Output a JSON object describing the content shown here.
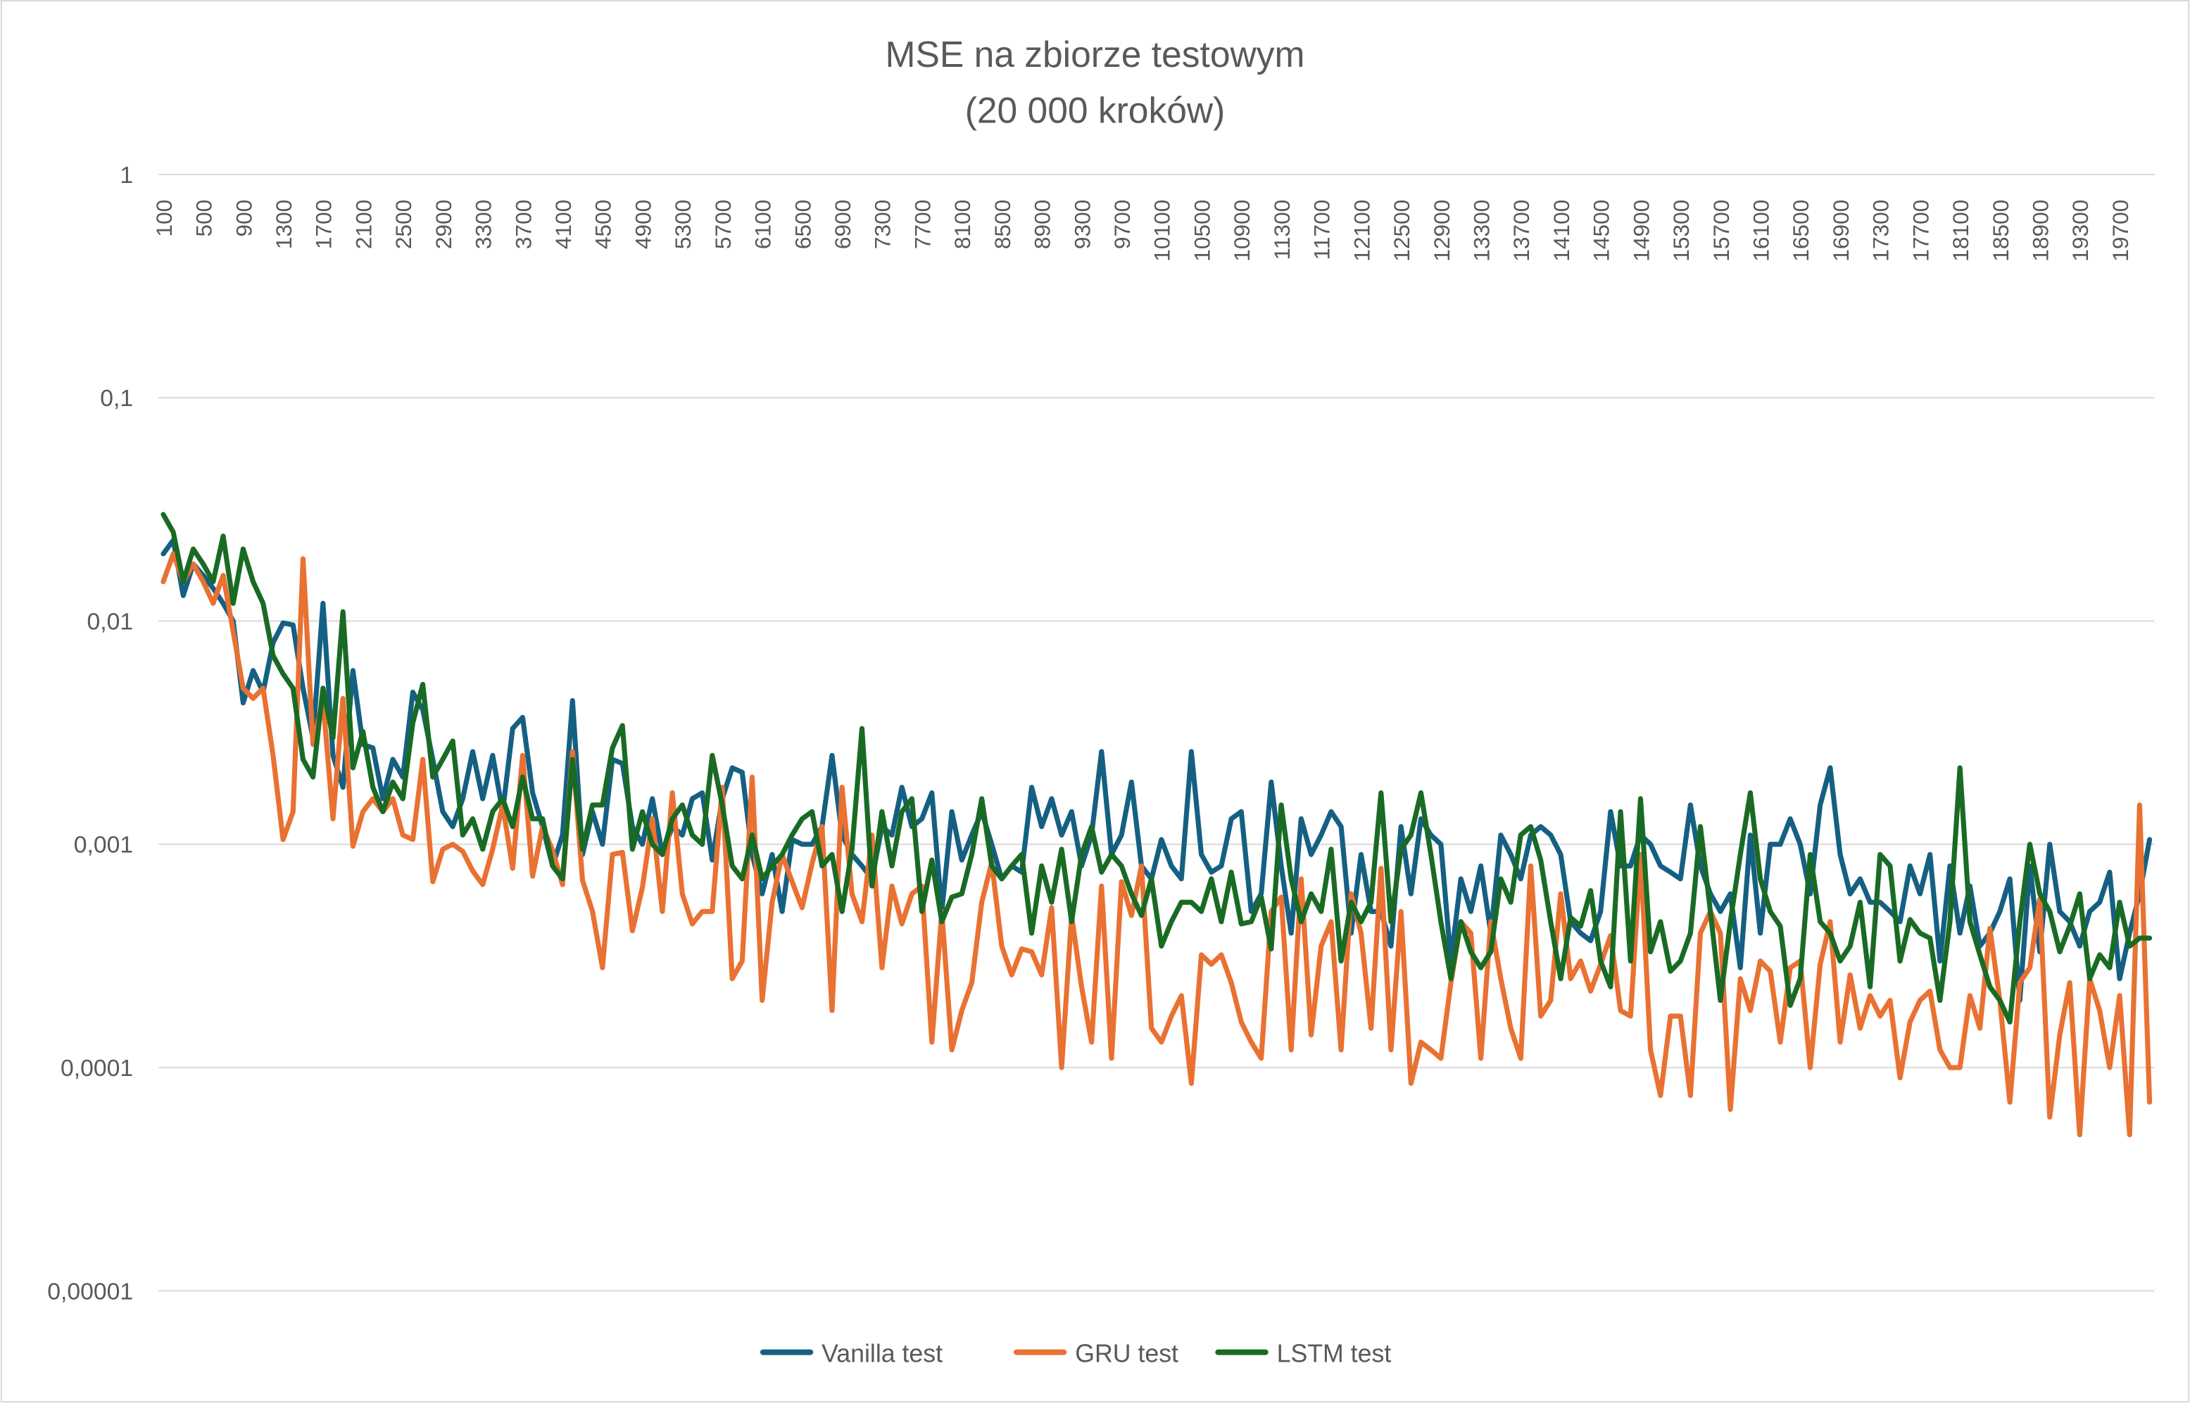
{
  "chart_data": {
    "type": "line",
    "title": "MSE na zbiorze testowym",
    "subtitle": "(20 000 kroków)",
    "log_y": true,
    "grid": true,
    "legend": "bottom",
    "ylim": [
      1e-05,
      1
    ],
    "yticks": [
      {
        "value": 1e-05,
        "label": "0,00001"
      },
      {
        "value": 0.0001,
        "label": "0,0001"
      },
      {
        "value": 0.001,
        "label": "0,001"
      },
      {
        "value": 0.01,
        "label": "0,01"
      },
      {
        "value": 0.1,
        "label": "0,1"
      },
      1
    ],
    "categories": [
      "100",
      null,
      null,
      null,
      "500",
      null,
      null,
      null,
      "900",
      null,
      null,
      null,
      "1300",
      null,
      null,
      null,
      "1700",
      null,
      null,
      null,
      "2100",
      null,
      null,
      null,
      "2500",
      null,
      null,
      null,
      "2900",
      null,
      null,
      null,
      "3300",
      null,
      null,
      null,
      "3700",
      null,
      null,
      null,
      "4100",
      null,
      null,
      null,
      "4500",
      null,
      null,
      null,
      "4900",
      null,
      null,
      null,
      "5300",
      null,
      null,
      null,
      "5700",
      null,
      null,
      null,
      "6100",
      null,
      null,
      null,
      "6500",
      null,
      null,
      null,
      "6900",
      null,
      null,
      null,
      "7300",
      null,
      null,
      null,
      "7700",
      null,
      null,
      null,
      "8100",
      null,
      null,
      null,
      "8500",
      null,
      null,
      null,
      "8900",
      null,
      null,
      null,
      "9300",
      null,
      null,
      null,
      "9700",
      null,
      null,
      null,
      "10100",
      null,
      null,
      null,
      "10500",
      null,
      null,
      null,
      "10900",
      null,
      null,
      null,
      "11300",
      null,
      null,
      null,
      "11700",
      null,
      null,
      null,
      "12100",
      null,
      null,
      null,
      "12500",
      null,
      null,
      null,
      "12900",
      null,
      null,
      null,
      "13300",
      null,
      null,
      null,
      "13700",
      null,
      null,
      null,
      "14100",
      null,
      null,
      null,
      "14500",
      null,
      null,
      null,
      "14900",
      null,
      null,
      null,
      "15300",
      null,
      null,
      null,
      "15700",
      null,
      null,
      null,
      "16100",
      null,
      null,
      null,
      "16500",
      null,
      null,
      null,
      "16900",
      null,
      null,
      null,
      "17300",
      null,
      null,
      null,
      "17700",
      null,
      null,
      null,
      "18100",
      null,
      null,
      null,
      "18500",
      null,
      null,
      null,
      "18900",
      null,
      null,
      null,
      "19300",
      null,
      null,
      null,
      "19700",
      null,
      null,
      null
    ],
    "series": [
      {
        "name": "Vanilla test",
        "color": "#156082",
        "values": [
          0.02,
          0.023,
          0.013,
          0.018,
          0.016,
          0.014,
          0.012,
          0.01,
          0.0043,
          0.006,
          0.0048,
          0.008,
          0.0098,
          0.0096,
          0.005,
          0.003,
          0.012,
          0.0025,
          0.0018,
          0.006,
          0.0028,
          0.0027,
          0.0016,
          0.0024,
          0.002,
          0.0048,
          0.004,
          0.0024,
          0.0014,
          0.0012,
          0.0016,
          0.0026,
          0.0016,
          0.0025,
          0.0014,
          0.0033,
          0.0037,
          0.0017,
          0.0012,
          0.0008,
          0.0011,
          0.0044,
          0.0009,
          0.0014,
          0.001,
          0.0024,
          0.0023,
          0.0012,
          0.001,
          0.0016,
          0.0009,
          0.0012,
          0.0011,
          0.0016,
          0.0017,
          0.00085,
          0.0016,
          0.0022,
          0.0021,
          0.0009,
          0.0006,
          0.0009,
          0.0005,
          0.00105,
          0.001,
          0.001,
          0.0012,
          0.0025,
          0.0011,
          0.0009,
          0.0008,
          0.0007,
          0.0012,
          0.0011,
          0.0018,
          0.0012,
          0.0013,
          0.0017,
          0.0005,
          0.0014,
          0.00085,
          0.0011,
          0.0014,
          0.001,
          0.0007,
          0.0008,
          0.00075,
          0.0018,
          0.0012,
          0.0016,
          0.0011,
          0.0014,
          0.0008,
          0.0011,
          0.0026,
          0.0009,
          0.0011,
          0.0019,
          0.0008,
          0.0007,
          0.00105,
          0.0008,
          0.0007,
          0.0026,
          0.0009,
          0.00075,
          0.0008,
          0.0013,
          0.0014,
          0.0005,
          0.0006,
          0.0019,
          0.0008,
          0.0004,
          0.0013,
          0.0009,
          0.0011,
          0.0014,
          0.0012,
          0.0004,
          0.0009,
          0.0005,
          0.0005,
          0.00035,
          0.0012,
          0.0006,
          0.0013,
          0.0011,
          0.001,
          0.0003,
          0.0007,
          0.0005,
          0.0008,
          0.0004,
          0.0011,
          0.0009,
          0.0007,
          0.0011,
          0.0012,
          0.0011,
          0.0009,
          0.00045,
          0.0004,
          0.00037,
          0.0005,
          0.0014,
          0.0008,
          0.0008,
          0.0011,
          0.001,
          0.0008,
          0.00075,
          0.0007,
          0.0015,
          0.0008,
          0.0006,
          0.0005,
          0.0006,
          0.00028,
          0.0011,
          0.0004,
          0.001,
          0.001,
          0.0013,
          0.001,
          0.0006,
          0.0015,
          0.0022,
          0.0009,
          0.0006,
          0.0007,
          0.00055,
          0.00055,
          0.0005,
          0.00045,
          0.0008,
          0.0006,
          0.0009,
          0.0003,
          0.0008,
          0.0004,
          0.00065,
          0.00035,
          0.0004,
          0.0005,
          0.0007,
          0.0002,
          0.0008,
          0.00033,
          0.001,
          0.0005,
          0.00045,
          0.00035,
          0.0005,
          0.00055,
          0.00075,
          0.00025,
          0.0004,
          0.0006,
          0.00105
        ]
      },
      {
        "name": "GRU test",
        "color": "#E97132",
        "values": [
          0.015,
          0.02,
          0.015,
          0.018,
          0.015,
          0.012,
          0.016,
          0.009,
          0.005,
          0.0045,
          0.005,
          0.0025,
          0.00105,
          0.0014,
          0.019,
          0.0028,
          0.0044,
          0.0013,
          0.0045,
          0.00098,
          0.0014,
          0.0016,
          0.0014,
          0.0016,
          0.0011,
          0.00105,
          0.0024,
          0.00068,
          0.00095,
          0.001,
          0.00093,
          0.00076,
          0.00066,
          0.00095,
          0.0015,
          0.00078,
          0.0025,
          0.00072,
          0.0012,
          0.00094,
          0.00066,
          0.0026,
          0.00069,
          0.0005,
          0.00028,
          0.0009,
          0.00092,
          0.00041,
          0.00064,
          0.0013,
          0.0005,
          0.0017,
          0.0006,
          0.00044,
          0.0005,
          0.0005,
          0.0018,
          0.00025,
          0.0003,
          0.002,
          0.0002,
          0.00055,
          0.0009,
          0.00068,
          0.00052,
          0.00082,
          0.0012,
          0.00018,
          0.0018,
          0.0006,
          0.00045,
          0.0011,
          0.00028,
          0.00065,
          0.00044,
          0.0006,
          0.00065,
          0.00013,
          0.0005,
          0.00012,
          0.00018,
          0.00024,
          0.00055,
          0.00083,
          0.00035,
          0.00026,
          0.00034,
          0.00033,
          0.00026,
          0.00052,
          0.0001,
          0.00048,
          0.00023,
          0.00013,
          0.00065,
          0.00011,
          0.00068,
          0.00048,
          0.0008,
          0.00015,
          0.00013,
          0.00017,
          0.00021,
          8.5e-05,
          0.00032,
          0.00029,
          0.00032,
          0.00024,
          0.00016,
          0.00013,
          0.00011,
          0.0005,
          0.00058,
          0.00012,
          0.0007,
          0.00014,
          0.00035,
          0.00045,
          0.00012,
          0.0006,
          0.0004,
          0.00015,
          0.00078,
          0.00012,
          0.0005,
          8.5e-05,
          0.00013,
          0.00012,
          0.00011,
          0.00024,
          0.00045,
          0.0004,
          0.00011,
          0.00045,
          0.00025,
          0.00015,
          0.00011,
          0.0008,
          0.00017,
          0.0002,
          0.0006,
          0.00025,
          0.0003,
          0.00022,
          0.00029,
          0.00039,
          0.00018,
          0.00017,
          0.0009,
          0.00012,
          7.5e-05,
          0.00017,
          0.00017,
          7.5e-05,
          0.0004,
          0.0005,
          0.0004,
          6.5e-05,
          0.00025,
          0.00018,
          0.0003,
          0.00027,
          0.00013,
          0.00028,
          0.0003,
          0.0001,
          0.00029,
          0.00045,
          0.00013,
          0.00026,
          0.00015,
          0.00021,
          0.00017,
          0.0002,
          9e-05,
          0.00016,
          0.0002,
          0.00022,
          0.00012,
          0.0001,
          0.0001,
          0.00021,
          0.00015,
          0.00042,
          0.0002,
          7e-05,
          0.00024,
          0.00028,
          0.00057,
          6e-05,
          0.00014,
          0.00024,
          5e-05,
          0.00025,
          0.00018,
          0.0001,
          0.00021,
          5e-05,
          0.0015,
          7e-05
        ]
      },
      {
        "name": "LSTM test",
        "color": "#196B24",
        "values": [
          0.03,
          0.025,
          0.015,
          0.021,
          0.018,
          0.015,
          0.024,
          0.012,
          0.021,
          0.015,
          0.012,
          0.007,
          0.0058,
          0.005,
          0.0024,
          0.002,
          0.005,
          0.003,
          0.011,
          0.0022,
          0.0032,
          0.0018,
          0.0014,
          0.0019,
          0.0016,
          0.0035,
          0.0052,
          0.002,
          0.0024,
          0.0029,
          0.0011,
          0.0013,
          0.00095,
          0.0014,
          0.0016,
          0.0012,
          0.002,
          0.0013,
          0.0013,
          0.0008,
          0.0007,
          0.0024,
          0.00095,
          0.0015,
          0.0015,
          0.0027,
          0.0034,
          0.00095,
          0.0014,
          0.001,
          0.0009,
          0.0013,
          0.0015,
          0.0011,
          0.001,
          0.0025,
          0.0015,
          0.0008,
          0.0007,
          0.0011,
          0.0007,
          0.0008,
          0.0009,
          0.0011,
          0.0013,
          0.0014,
          0.0008,
          0.0009,
          0.0005,
          0.00095,
          0.0033,
          0.00065,
          0.0014,
          0.0008,
          0.0014,
          0.0016,
          0.0005,
          0.00085,
          0.00045,
          0.00058,
          0.0006,
          0.0009,
          0.0016,
          0.0008,
          0.0007,
          0.0008,
          0.0009,
          0.0004,
          0.0008,
          0.00055,
          0.00095,
          0.00045,
          0.0009,
          0.0012,
          0.00075,
          0.0009,
          0.0008,
          0.0006,
          0.00048,
          0.0007,
          0.00035,
          0.00045,
          0.00055,
          0.00055,
          0.0005,
          0.0007,
          0.00045,
          0.00075,
          0.00044,
          0.00045,
          0.00058,
          0.00034,
          0.0015,
          0.0007,
          0.00045,
          0.0006,
          0.0005,
          0.00095,
          0.0003,
          0.00055,
          0.00045,
          0.00055,
          0.0017,
          0.00045,
          0.00095,
          0.0011,
          0.0017,
          0.0009,
          0.00045,
          0.00025,
          0.00045,
          0.00033,
          0.00028,
          0.00033,
          0.0007,
          0.00055,
          0.0011,
          0.0012,
          0.00085,
          0.00045,
          0.00025,
          0.00047,
          0.00043,
          0.00062,
          0.0003,
          0.00023,
          0.0014,
          0.0003,
          0.0016,
          0.00033,
          0.00045,
          0.00027,
          0.0003,
          0.0004,
          0.0012,
          0.0005,
          0.0002,
          0.00045,
          0.0009,
          0.0017,
          0.0007,
          0.0005,
          0.00043,
          0.00019,
          0.00025,
          0.0009,
          0.00045,
          0.0004,
          0.0003,
          0.00035,
          0.00055,
          0.00023,
          0.0009,
          0.0008,
          0.0003,
          0.00046,
          0.0004,
          0.00038,
          0.0002,
          0.00045,
          0.0022,
          0.00045,
          0.00032,
          0.00023,
          0.0002,
          0.00016,
          0.00045,
          0.001,
          0.0006,
          0.0005,
          0.00033,
          0.00043,
          0.0006,
          0.00025,
          0.00032,
          0.00028,
          0.00055,
          0.00035,
          0.00038,
          0.00038
        ]
      }
    ]
  }
}
